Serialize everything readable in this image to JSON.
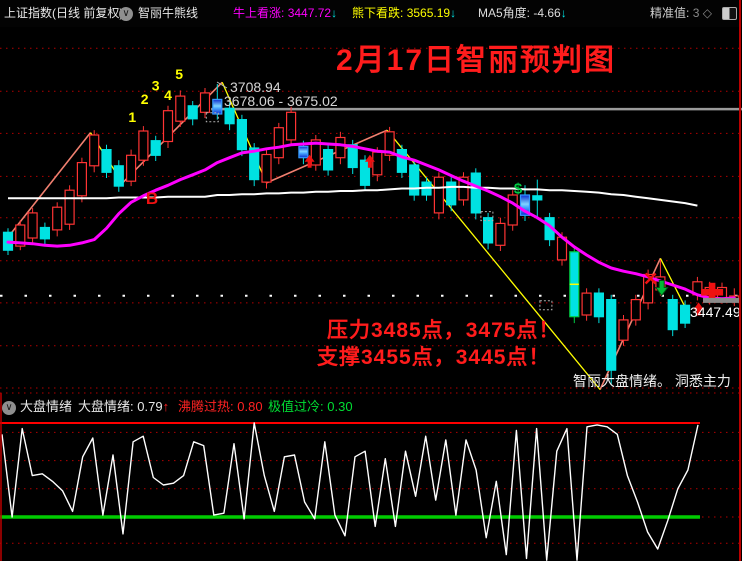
{
  "top_bar": {
    "symbol": "上证指数(日线 前复权)",
    "indicator_name": "智丽牛熊线",
    "bull_label": "牛上看涨:",
    "bull_value": "3447.72",
    "bull_arrow": "↓",
    "bear_label": "熊下看跌:",
    "bear_value": "3565.19",
    "bear_arrow": "↓",
    "ma5_label": "MA5角度:",
    "ma5_value": "-4.66",
    "ma5_arrow": "↓",
    "precise_label": "精准值:",
    "precise_value": "3",
    "precise_diamond": "◇"
  },
  "annotations": {
    "title": "2月17日智丽预判图",
    "peak_price": "3708.94",
    "gap_range": "3678.06 - 3675.02",
    "pressure": "压力3485点，3475点！",
    "support": "支撑3455点，3445点！",
    "watermark": "智丽大盘情绪。 洞悉主力",
    "buy_point": "B",
    "last_price": "3447.49"
  },
  "sub_panel": {
    "name": "大盘情绪",
    "value_label": "大盘情绪:",
    "value": "0.79",
    "arrow": "↑",
    "hot_label": "沸腾过热:",
    "hot_value": "0.80",
    "cold_label": "极值过冷:",
    "cold_value": "0.30"
  },
  "colors": {
    "up": "#ff3434",
    "down": "#00e2e2",
    "ma_fast": "#ff00ff",
    "ma_slow": "#ffffff",
    "gap_line": "#9a9a9a",
    "trend_up": "#f08070",
    "trend_down": "#ffff00",
    "grid": "#b30000",
    "border": "#bb0000",
    "hot": "#ff0000",
    "cold": "#00cc00",
    "marker_red": "#ee1111",
    "marker_green": "#00bb33",
    "dollar": "#00cc44",
    "wave": "#ffff00",
    "tag_bar": "#8a8a8a",
    "green_candle": "#00cc44",
    "blue_candle_edge": "#3399ff"
  },
  "chart_data": [
    {
      "type": "candlestick",
      "name": "上证指数 日线",
      "x_axis": "交易日(无刻度标签)",
      "visible_high": 3708.94,
      "visible_last": 3447.49,
      "grid_prices": [
        3753,
        3700,
        3648,
        3595,
        3544,
        3491,
        3439,
        3386,
        3334
      ],
      "candles": [
        [
          3526,
          3531,
          3498,
          3504,
          "d"
        ],
        [
          3509,
          3541,
          3504,
          3535,
          "u"
        ],
        [
          3519,
          3556,
          3512,
          3550,
          "u"
        ],
        [
          3532,
          3538,
          3510,
          3518,
          "d"
        ],
        [
          3529,
          3563,
          3521,
          3557,
          "u"
        ],
        [
          3536,
          3584,
          3529,
          3578,
          "u"
        ],
        [
          3571,
          3618,
          3563,
          3612,
          "u"
        ],
        [
          3608,
          3652,
          3600,
          3646,
          "u"
        ],
        [
          3628,
          3634,
          3593,
          3600,
          "d"
        ],
        [
          3608,
          3615,
          3576,
          3583,
          "d"
        ],
        [
          3589,
          3628,
          3583,
          3621,
          "u"
        ],
        [
          3615,
          3657,
          3608,
          3651,
          "u"
        ],
        [
          3639,
          3645,
          3614,
          3621,
          "d"
        ],
        [
          3638,
          3682,
          3630,
          3676,
          "u"
        ],
        [
          3663,
          3701,
          3656,
          3694,
          "u"
        ],
        [
          3682,
          3688,
          3658,
          3666,
          "d"
        ],
        [
          3674,
          3704,
          3667,
          3698,
          "u"
        ],
        [
          3672,
          3708.94,
          3665,
          3690,
          "b"
        ],
        [
          3679,
          3686,
          3652,
          3660,
          "d"
        ],
        [
          3665,
          3671,
          3620,
          3628,
          "d"
        ],
        [
          3630,
          3636,
          3583,
          3591,
          "d"
        ],
        [
          3588,
          3628,
          3580,
          3622,
          "u"
        ],
        [
          3618,
          3661,
          3610,
          3655,
          "u"
        ],
        [
          3640,
          3681,
          3633,
          3674,
          "u"
        ],
        [
          3632,
          3639,
          3610,
          3618,
          "b"
        ],
        [
          3609,
          3646,
          3602,
          3640,
          "u"
        ],
        [
          3628,
          3634,
          3596,
          3603,
          "d"
        ],
        [
          3618,
          3650,
          3610,
          3643,
          "u"
        ],
        [
          3634,
          3640,
          3598,
          3606,
          "d"
        ],
        [
          3615,
          3621,
          3577,
          3584,
          "d"
        ],
        [
          3597,
          3631,
          3589,
          3625,
          "u"
        ],
        [
          3621,
          3656,
          3614,
          3650,
          "u"
        ],
        [
          3628,
          3634,
          3593,
          3600,
          "d"
        ],
        [
          3609,
          3615,
          3565,
          3572,
          "d"
        ],
        [
          3588,
          3594,
          3565,
          3572,
          "d"
        ],
        [
          3550,
          3600,
          3542,
          3594,
          "u"
        ],
        [
          3588,
          3594,
          3552,
          3560,
          "d"
        ],
        [
          3566,
          3600,
          3559,
          3594,
          "u"
        ],
        [
          3599,
          3605,
          3542,
          3550,
          "d"
        ],
        [
          3544,
          3550,
          3505,
          3513,
          "d"
        ],
        [
          3510,
          3544,
          3503,
          3537,
          "u"
        ],
        [
          3535,
          3578,
          3528,
          3572,
          "u"
        ],
        [
          3547,
          3584,
          3540,
          3572,
          "b"
        ],
        [
          3571,
          3591,
          3542,
          3566,
          "d"
        ],
        [
          3544,
          3550,
          3509,
          3517,
          "d"
        ],
        [
          3492,
          3526,
          3485,
          3520,
          "u"
        ],
        [
          3502,
          3508,
          3414,
          3422,
          "g"
        ],
        [
          3424,
          3457,
          3417,
          3451,
          "u"
        ],
        [
          3451,
          3457,
          3414,
          3422,
          "d"
        ],
        [
          3443,
          3449,
          3338,
          3356,
          "d"
        ],
        [
          3393,
          3424,
          3386,
          3418,
          "u"
        ],
        [
          3418,
          3449,
          3411,
          3443,
          "u"
        ],
        [
          3439,
          3480,
          3431,
          3474,
          "u"
        ],
        [
          3455,
          3492,
          3448,
          3471,
          "u"
        ],
        [
          3443,
          3449,
          3398,
          3406,
          "d"
        ],
        [
          3436,
          3442,
          3408,
          3414,
          "d"
        ],
        [
          3449,
          3471,
          3442,
          3465,
          "u"
        ],
        [
          3445,
          3465,
          3437,
          3458,
          "u"
        ],
        [
          3445,
          3464,
          3438,
          3458,
          "u"
        ],
        [
          3441,
          3457,
          3435,
          3447.49,
          "u"
        ]
      ],
      "series": [
        {
          "name": "牛熊线(品红)",
          "values": [
            3514,
            3513,
            3512,
            3510,
            3509,
            3510,
            3513,
            3517,
            3531,
            3549,
            3563,
            3571,
            3578,
            3584,
            3591,
            3597,
            3603,
            3612,
            3618,
            3624,
            3626,
            3629,
            3631,
            3634,
            3635,
            3636,
            3635,
            3634,
            3632,
            3629,
            3626,
            3625,
            3619,
            3615,
            3609,
            3603,
            3596,
            3589,
            3583,
            3577,
            3570,
            3562,
            3552,
            3544,
            3534,
            3520,
            3508,
            3498,
            3489,
            3482,
            3478,
            3475,
            3471,
            3466,
            3461,
            3456,
            3449,
            3445,
            3444,
            3445
          ]
        },
        {
          "name": "慢速均线(白)",
          "values": [
            3568,
            3568,
            3568,
            3568,
            3568,
            3568,
            3568,
            3568,
            3568,
            3569,
            3569,
            3569,
            3569,
            3570,
            3570,
            3570,
            3570,
            3572,
            3572,
            3573,
            3573,
            3574,
            3574,
            3575,
            3575,
            3576,
            3576,
            3577,
            3577,
            3578,
            3578,
            3579,
            3580,
            3580,
            3581,
            3581,
            3582,
            3582,
            3581,
            3581,
            3580,
            3580,
            3579,
            3579,
            3578,
            3578,
            3577,
            3576,
            3575,
            3573,
            3572,
            3570,
            3568,
            3566,
            3564,
            3562,
            3559
          ]
        }
      ],
      "levels": {
        "gap_level": {
          "price": 3678,
          "from_day": 16.5,
          "label": "3678.06 - 3675.02"
        },
        "bull_level_dotted": 3447.72
      },
      "trendlines": {
        "pink_up": [
          [
            [
              0,
              3520
            ],
            [
              6.7,
              3649
            ]
          ],
          [
            [
              9.3,
              3587
            ],
            [
              17.4,
              3711
            ]
          ],
          [
            [
              21,
              3587
            ],
            [
              30.8,
              3652
            ]
          ],
          [
            [
              48.1,
              3332
            ],
            [
              53,
              3494
            ]
          ]
        ],
        "yellow_down": [
          [
            [
              6.7,
              3649
            ],
            [
              9.3,
              3587
            ]
          ],
          [
            [
              17.4,
              3711
            ],
            [
              21,
              3587
            ]
          ],
          [
            [
              30.8,
              3652
            ],
            [
              48.1,
              3332
            ]
          ],
          [
            [
              53,
              3494
            ],
            [
              55.2,
              3428
            ]
          ]
        ]
      },
      "wave_points": [
        {
          "label": "1",
          "day": 10.1,
          "price": 3662
        },
        {
          "label": "2",
          "day": 11.1,
          "price": 3684
        },
        {
          "label": "3",
          "day": 12,
          "price": 3701
        },
        {
          "label": "4",
          "day": 13,
          "price": 3689
        },
        {
          "label": "5",
          "day": 13.9,
          "price": 3715
        }
      ],
      "b_point": {
        "label": "B",
        "day": 11.2,
        "price": 3561
      },
      "markers": [
        {
          "type": "up-arrow",
          "day": 24.5,
          "price": 3613
        },
        {
          "type": "up-arrow",
          "day": 29.4,
          "price": 3613
        },
        {
          "type": "up-arrow",
          "day": 56.1,
          "price": 3431
        },
        {
          "type": "sell-x",
          "day": 52.2,
          "price": 3469
        },
        {
          "type": "down-arrow",
          "day": 53.1,
          "price": 3458
        },
        {
          "type": "dollar",
          "day": 41.5,
          "price": 3580
        },
        {
          "type": "big-cross",
          "day": 57.2,
          "price": 3452
        },
        {
          "type": "ghost-box",
          "day": 16.6,
          "price": 3668
        },
        {
          "type": "ghost-box",
          "day": 38.9,
          "price": 3546
        },
        {
          "type": "ghost-box",
          "day": 43.7,
          "price": 3436
        }
      ],
      "price_tag": {
        "value": 3447.49,
        "bar_price": 3442
      }
    },
    {
      "type": "line",
      "name": "大盘情绪",
      "current": 0.79,
      "overheat_level": 0.8,
      "overcold_level": 0.3,
      "grid_values": [
        0.75,
        0.6,
        0.45,
        0.3,
        0.16
      ],
      "values": [
        0.74,
        0.3,
        0.77,
        0.52,
        0.53,
        0.49,
        0.44,
        0.33,
        0.62,
        0.72,
        0.31,
        0.63,
        0.21,
        0.7,
        0.73,
        0.51,
        0.47,
        0.48,
        0.52,
        0.7,
        0.68,
        0.31,
        0.32,
        0.69,
        0.29,
        0.8,
        0.52,
        0.33,
        0.62,
        0.63,
        0.38,
        0.29,
        0.7,
        0.31,
        0.2,
        0.62,
        0.65,
        0.25,
        0.61,
        0.25,
        0.65,
        0.41,
        0.73,
        0.39,
        0.71,
        0.31,
        0.71,
        0.55,
        0.19,
        0.49,
        0.1,
        0.76,
        0.08,
        0.77,
        0.07,
        0.65,
        0.77,
        0.07,
        0.78,
        0.79,
        0.78,
        0.74,
        0.52,
        0.38,
        0.22,
        0.13,
        0.28,
        0.45,
        0.55,
        0.79
      ]
    }
  ]
}
